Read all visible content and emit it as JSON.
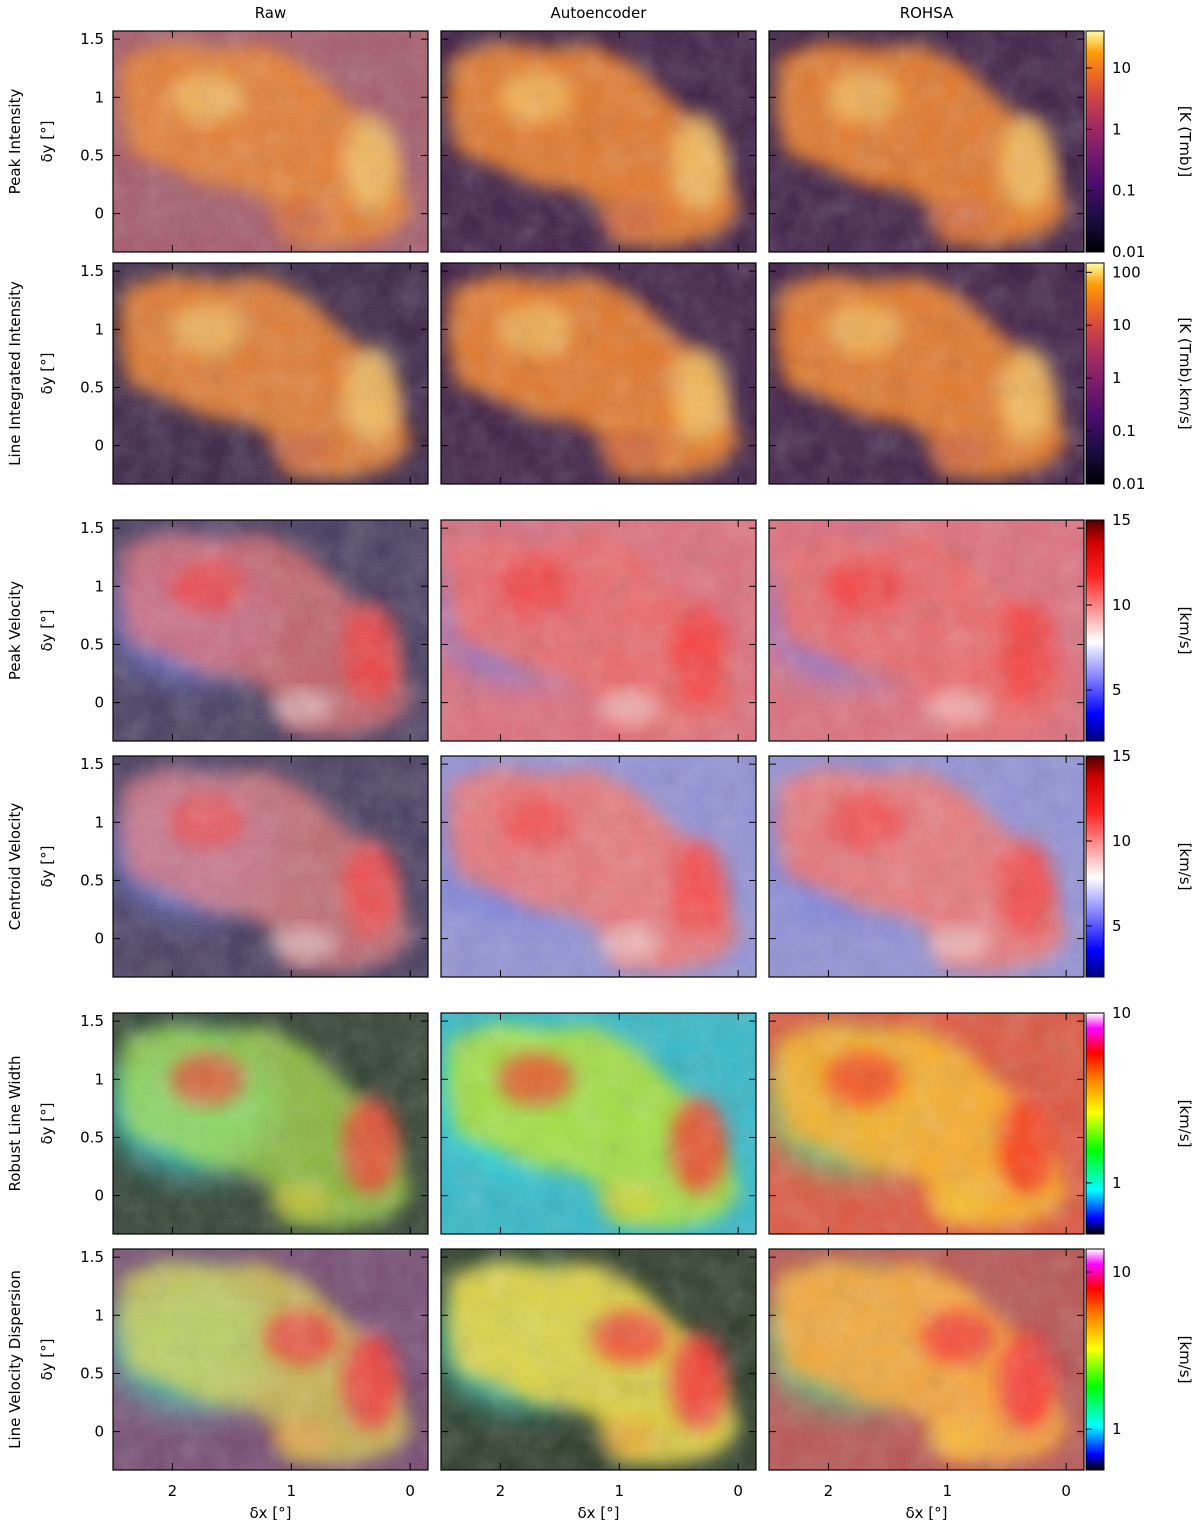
{
  "chart_data": {
    "type": "heatmap",
    "columns": [
      "Raw",
      "Autoencoder",
      "ROHSA"
    ],
    "xlabel": "δx [°]",
    "ylabel": "δy [°]",
    "x_ticks": [
      "2",
      "1",
      "0"
    ],
    "x_tick_values": [
      2,
      1,
      0
    ],
    "xlim": [
      2.5,
      -0.15
    ],
    "y_ticks": [
      "1.5",
      "1",
      "0.5",
      "0"
    ],
    "y_tick_values": [
      1.5,
      1,
      0.5,
      0
    ],
    "ylim": [
      -0.33,
      1.57
    ],
    "rows": [
      {
        "label": "Peak Intensity",
        "unit": "[K (Tmb)]",
        "colormap": "inferno",
        "scale": "log",
        "cbar_ticks": [
          "10",
          "1",
          "0.1",
          "0.01"
        ],
        "cbar_values": [
          10,
          1,
          0.1,
          0.01
        ],
        "vmin": 0.01,
        "vmax": 40
      },
      {
        "label": "Line Integrated Intensity",
        "unit": "[K (Tmb).km/s]",
        "colormap": "inferno",
        "scale": "log",
        "cbar_ticks": [
          "100",
          "10",
          "1",
          "0.1",
          "0.01"
        ],
        "cbar_values": [
          100,
          10,
          1,
          0.1,
          0.01
        ],
        "vmin": 0.01,
        "vmax": 150
      },
      {
        "label": "Peak Velocity",
        "unit": "[km/s]",
        "colormap": "blue-white-red",
        "scale": "linear",
        "cbar_ticks": [
          "15",
          "10",
          "5"
        ],
        "cbar_values": [
          15,
          10,
          5
        ],
        "vmin": 2,
        "vmax": 15
      },
      {
        "label": "Centroid Velocity",
        "unit": "[km/s]",
        "colormap": "blue-white-red",
        "scale": "linear",
        "cbar_ticks": [
          "15",
          "10",
          "5"
        ],
        "cbar_values": [
          15,
          10,
          5
        ],
        "vmin": 2,
        "vmax": 15
      },
      {
        "label": "Robust Line Width",
        "unit": "[km/s]",
        "colormap": "rainbow",
        "scale": "log",
        "cbar_ticks": [
          "10",
          "1"
        ],
        "cbar_values": [
          10,
          1
        ],
        "vmin": 0.5,
        "vmax": 10
      },
      {
        "label": "Line Velocity Dispersion",
        "unit": "[km/s]",
        "colormap": "rainbow",
        "scale": "log",
        "cbar_ticks": [
          "10",
          "1"
        ],
        "cbar_values": [
          10,
          1
        ],
        "vmin": 0.55,
        "vmax": 14
      }
    ]
  }
}
